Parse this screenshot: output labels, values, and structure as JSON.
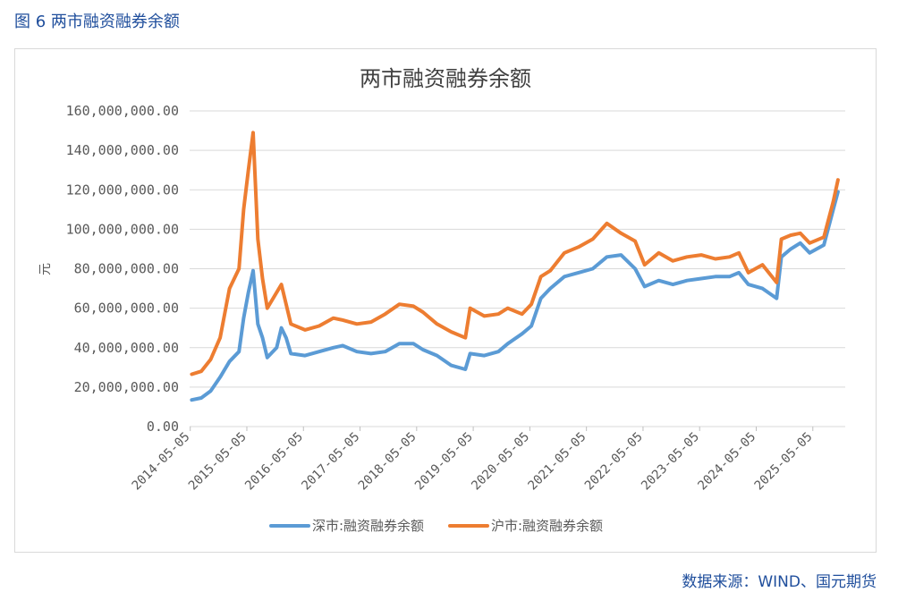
{
  "caption": "图 6 两市融资融券余额",
  "source": "数据来源：WIND、国元期货",
  "chart_data": {
    "type": "line",
    "title": "两市融资融券余额",
    "ylabel": "元",
    "xlabel": "",
    "ylim": [
      0,
      160000000
    ],
    "yticks": [
      0,
      20000000,
      40000000,
      60000000,
      80000000,
      100000000,
      120000000,
      140000000,
      160000000
    ],
    "ytick_labels": [
      "0.00",
      "20,000,000.00",
      "40,000,000.00",
      "60,000,000.00",
      "80,000,000.00",
      "100,000,000.00",
      "120,000,000.00",
      "140,000,000.00",
      "160,000,000.00"
    ],
    "xlim": [
      "2014-05",
      "2025-12"
    ],
    "xticks": [
      "2014-05-05",
      "2015-05-05",
      "2016-05-05",
      "2017-05-05",
      "2018-05-05",
      "2019-05-05",
      "2020-05-05",
      "2021-05-05",
      "2022-05-05",
      "2023-05-05",
      "2024-05-05",
      "2025-05-05"
    ],
    "legend_position": "bottom",
    "grid": "horizontal",
    "series": [
      {
        "name": "深市:融资融券余额",
        "color": "#5b9bd5",
        "points": [
          [
            "2014-05",
            13500000
          ],
          [
            "2014-07",
            14500000
          ],
          [
            "2014-09",
            18000000
          ],
          [
            "2014-11",
            25000000
          ],
          [
            "2015-01",
            33000000
          ],
          [
            "2015-03",
            38000000
          ],
          [
            "2015-04",
            55000000
          ],
          [
            "2015-05",
            68000000
          ],
          [
            "2015-06",
            79000000
          ],
          [
            "2015-07",
            52000000
          ],
          [
            "2015-08",
            45000000
          ],
          [
            "2015-09",
            35000000
          ],
          [
            "2015-11",
            40000000
          ],
          [
            "2015-12",
            50000000
          ],
          [
            "2016-01",
            45000000
          ],
          [
            "2016-02",
            37000000
          ],
          [
            "2016-05",
            36000000
          ],
          [
            "2016-08",
            38000000
          ],
          [
            "2016-11",
            40000000
          ],
          [
            "2017-01",
            41000000
          ],
          [
            "2017-04",
            38000000
          ],
          [
            "2017-07",
            37000000
          ],
          [
            "2017-10",
            38000000
          ],
          [
            "2018-01",
            42000000
          ],
          [
            "2018-04",
            42000000
          ],
          [
            "2018-06",
            39000000
          ],
          [
            "2018-09",
            36000000
          ],
          [
            "2018-12",
            31000000
          ],
          [
            "2019-03",
            29000000
          ],
          [
            "2019-04",
            37000000
          ],
          [
            "2019-07",
            36000000
          ],
          [
            "2019-10",
            38000000
          ],
          [
            "2019-12",
            42000000
          ],
          [
            "2020-03",
            47000000
          ],
          [
            "2020-05",
            51000000
          ],
          [
            "2020-07",
            65000000
          ],
          [
            "2020-09",
            70000000
          ],
          [
            "2020-12",
            76000000
          ],
          [
            "2021-03",
            78000000
          ],
          [
            "2021-06",
            80000000
          ],
          [
            "2021-09",
            86000000
          ],
          [
            "2021-12",
            87000000
          ],
          [
            "2022-03",
            80000000
          ],
          [
            "2022-05",
            71000000
          ],
          [
            "2022-08",
            74000000
          ],
          [
            "2022-11",
            72000000
          ],
          [
            "2023-02",
            74000000
          ],
          [
            "2023-05",
            75000000
          ],
          [
            "2023-08",
            76000000
          ],
          [
            "2023-11",
            76000000
          ],
          [
            "2024-01",
            78000000
          ],
          [
            "2024-03",
            72000000
          ],
          [
            "2024-06",
            70000000
          ],
          [
            "2024-09",
            65000000
          ],
          [
            "2024-10",
            86000000
          ],
          [
            "2024-12",
            90000000
          ],
          [
            "2025-02",
            93000000
          ],
          [
            "2025-04",
            88000000
          ],
          [
            "2025-07",
            92000000
          ],
          [
            "2025-09",
            110000000
          ],
          [
            "2025-10",
            119000000
          ]
        ]
      },
      {
        "name": "沪市:融资融券余额",
        "color": "#ed7d31",
        "points": [
          [
            "2014-05",
            26500000
          ],
          [
            "2014-07",
            28000000
          ],
          [
            "2014-09",
            34000000
          ],
          [
            "2014-11",
            45000000
          ],
          [
            "2015-01",
            70000000
          ],
          [
            "2015-03",
            80000000
          ],
          [
            "2015-04",
            110000000
          ],
          [
            "2015-05",
            130000000
          ],
          [
            "2015-06",
            149000000
          ],
          [
            "2015-07",
            95000000
          ],
          [
            "2015-08",
            75000000
          ],
          [
            "2015-09",
            60000000
          ],
          [
            "2015-11",
            68000000
          ],
          [
            "2015-12",
            72000000
          ],
          [
            "2016-01",
            62000000
          ],
          [
            "2016-02",
            52000000
          ],
          [
            "2016-05",
            49000000
          ],
          [
            "2016-08",
            51000000
          ],
          [
            "2016-11",
            55000000
          ],
          [
            "2017-01",
            54000000
          ],
          [
            "2017-04",
            52000000
          ],
          [
            "2017-07",
            53000000
          ],
          [
            "2017-10",
            57000000
          ],
          [
            "2018-01",
            62000000
          ],
          [
            "2018-04",
            61000000
          ],
          [
            "2018-06",
            58000000
          ],
          [
            "2018-09",
            52000000
          ],
          [
            "2018-12",
            48000000
          ],
          [
            "2019-03",
            45000000
          ],
          [
            "2019-04",
            60000000
          ],
          [
            "2019-07",
            56000000
          ],
          [
            "2019-10",
            57000000
          ],
          [
            "2019-12",
            60000000
          ],
          [
            "2020-03",
            57000000
          ],
          [
            "2020-05",
            62000000
          ],
          [
            "2020-07",
            76000000
          ],
          [
            "2020-09",
            79000000
          ],
          [
            "2020-12",
            88000000
          ],
          [
            "2021-03",
            91000000
          ],
          [
            "2021-06",
            95000000
          ],
          [
            "2021-09",
            103000000
          ],
          [
            "2021-12",
            98000000
          ],
          [
            "2022-03",
            94000000
          ],
          [
            "2022-05",
            82000000
          ],
          [
            "2022-08",
            88000000
          ],
          [
            "2022-11",
            84000000
          ],
          [
            "2023-02",
            86000000
          ],
          [
            "2023-05",
            87000000
          ],
          [
            "2023-08",
            85000000
          ],
          [
            "2023-11",
            86000000
          ],
          [
            "2024-01",
            88000000
          ],
          [
            "2024-03",
            78000000
          ],
          [
            "2024-06",
            82000000
          ],
          [
            "2024-09",
            73000000
          ],
          [
            "2024-10",
            95000000
          ],
          [
            "2024-12",
            97000000
          ],
          [
            "2025-02",
            98000000
          ],
          [
            "2025-04",
            93000000
          ],
          [
            "2025-07",
            96000000
          ],
          [
            "2025-09",
            114000000
          ],
          [
            "2025-10",
            125000000
          ]
        ]
      }
    ]
  }
}
